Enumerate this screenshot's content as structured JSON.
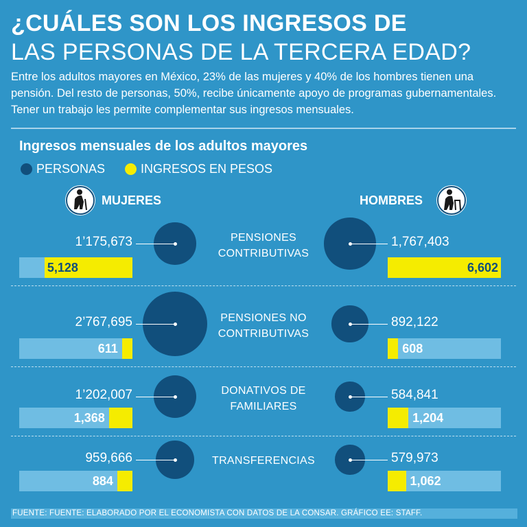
{
  "title_line1": "¿CUÁLES SON LOS INGRESOS DE",
  "title_line2": "LAS PERSONAS DE LA TERCERA EDAD?",
  "intro": "Entre los adultos mayores en México, 23% de las mujeres y 40% de los hombres tienen una pensión. Del resto de personas, 50%, recibe únicamente apoyo de programas gubernamentales. Tener un trabajo les permite complementar sus ingresos mensuales.",
  "chart_data": {
    "type": "bubble-bar",
    "title": "Ingresos mensuales de los adultos mayores",
    "legend": [
      {
        "label": "PERSONAS",
        "color": "#114f7c"
      },
      {
        "label": "INGRESOS EN PESOS",
        "color": "#f5ec00"
      }
    ],
    "genders": {
      "women": "MUJERES",
      "men": "HOMBRES"
    },
    "income_max": 6602,
    "categories": [
      {
        "label": "PENSIONES CONTRIBUTIVAS",
        "women_people": 1175673,
        "women_people_label": "1’175,673",
        "women_income": 5128,
        "women_income_label": "5,128",
        "men_people": 1767403,
        "men_people_label": "1,767,403",
        "men_income": 6602,
        "men_income_label": "6,602"
      },
      {
        "label": "PENSIONES NO CONTRIBUTIVAS",
        "women_people": 2767695,
        "women_people_label": "2’767,695",
        "women_income": 611,
        "women_income_label": "611",
        "men_people": 892122,
        "men_people_label": "892,122",
        "men_income": 608,
        "men_income_label": "608"
      },
      {
        "label": "DONATIVOS DE FAMILIARES",
        "women_people": 1202007,
        "women_people_label": "1’202,007",
        "women_income": 1368,
        "women_income_label": "1,368",
        "men_people": 584841,
        "men_people_label": "584,841",
        "men_income": 1204,
        "men_income_label": "1,204"
      },
      {
        "label": "TRANSFERENCIAS",
        "women_people": 959666,
        "women_people_label": "959,666",
        "women_income": 884,
        "women_income_label": "884",
        "men_people": 579973,
        "men_people_label": "579,973",
        "men_income": 1062,
        "men_income_label": "1,062"
      }
    ]
  },
  "footer": "FUENTE: FUENTE: ELABORADO POR EL ECONOMISTA CON DATOS DE LA CONSAR. GRÁFICO EE: STAFF."
}
